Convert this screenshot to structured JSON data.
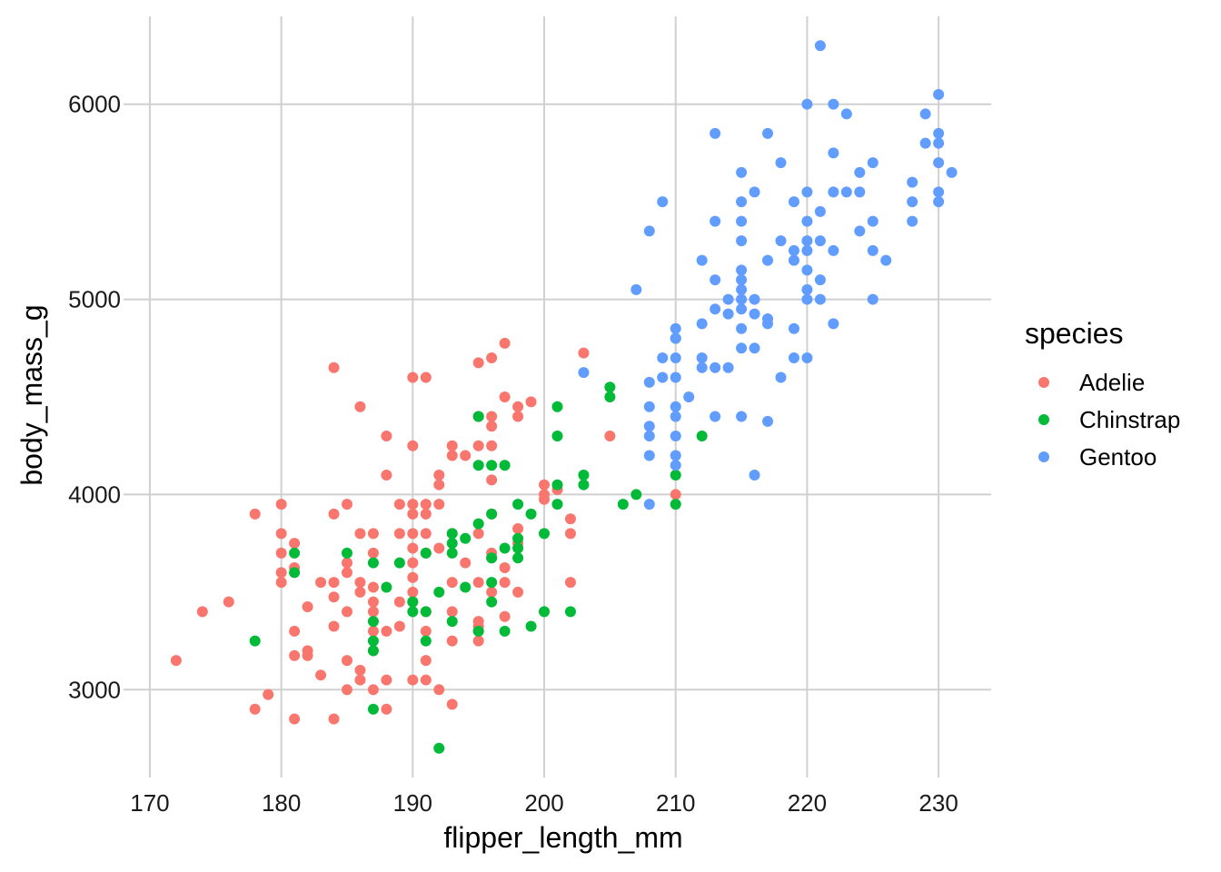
{
  "chart_data": {
    "type": "scatter",
    "xlabel": "flipper_length_mm",
    "ylabel": "body_mass_g",
    "xlim": [
      168,
      234
    ],
    "ylim": [
      2550,
      6450
    ],
    "x_ticks": [
      170,
      180,
      190,
      200,
      210,
      220,
      230
    ],
    "y_ticks": [
      3000,
      4000,
      5000,
      6000
    ],
    "grid": true,
    "legend": {
      "title": "species",
      "position": "right"
    },
    "series": [
      {
        "name": "Adelie",
        "color": "#F8766D",
        "points": [
          [
            172,
            3150
          ],
          [
            174,
            3400
          ],
          [
            176,
            3450
          ],
          [
            178,
            2900
          ],
          [
            178,
            3900
          ],
          [
            179,
            2975
          ],
          [
            180,
            3950
          ],
          [
            180,
            3800
          ],
          [
            180,
            3700
          ],
          [
            180,
            3600
          ],
          [
            180,
            3550
          ],
          [
            181,
            3750
          ],
          [
            181,
            3625
          ],
          [
            181,
            3300
          ],
          [
            181,
            3175
          ],
          [
            181,
            2850
          ],
          [
            182,
            3425
          ],
          [
            182,
            3200
          ],
          [
            182,
            3175
          ],
          [
            183,
            3550
          ],
          [
            183,
            3075
          ],
          [
            184,
            4650
          ],
          [
            184,
            3900
          ],
          [
            184,
            3550
          ],
          [
            184,
            3475
          ],
          [
            184,
            3325
          ],
          [
            184,
            2850
          ],
          [
            185,
            3950
          ],
          [
            185,
            3650
          ],
          [
            185,
            3600
          ],
          [
            185,
            3400
          ],
          [
            185,
            3150
          ],
          [
            185,
            3000
          ],
          [
            186,
            4450
          ],
          [
            186,
            3800
          ],
          [
            186,
            3550
          ],
          [
            186,
            3500
          ],
          [
            186,
            3100
          ],
          [
            186,
            3050
          ],
          [
            187,
            3800
          ],
          [
            187,
            3700
          ],
          [
            187,
            3525
          ],
          [
            187,
            3450
          ],
          [
            187,
            3400
          ],
          [
            187,
            3300
          ],
          [
            187,
            3200
          ],
          [
            187,
            3000
          ],
          [
            188,
            4300
          ],
          [
            188,
            4100
          ],
          [
            188,
            3300
          ],
          [
            188,
            3050
          ],
          [
            188,
            2900
          ],
          [
            189,
            3950
          ],
          [
            189,
            3800
          ],
          [
            189,
            3450
          ],
          [
            189,
            3325
          ],
          [
            190,
            4600
          ],
          [
            190,
            4250
          ],
          [
            190,
            3950
          ],
          [
            190,
            3900
          ],
          [
            190,
            3800
          ],
          [
            190,
            3725
          ],
          [
            190,
            3650
          ],
          [
            190,
            3575
          ],
          [
            190,
            3500
          ],
          [
            190,
            3450
          ],
          [
            190,
            3050
          ],
          [
            191,
            4600
          ],
          [
            191,
            3950
          ],
          [
            191,
            3900
          ],
          [
            191,
            3800
          ],
          [
            191,
            3700
          ],
          [
            191,
            3400
          ],
          [
            191,
            3300
          ],
          [
            191,
            3150
          ],
          [
            191,
            3050
          ],
          [
            192,
            4100
          ],
          [
            192,
            4050
          ],
          [
            192,
            3950
          ],
          [
            192,
            3725
          ],
          [
            192,
            3000
          ],
          [
            193,
            4250
          ],
          [
            193,
            4200
          ],
          [
            193,
            3800
          ],
          [
            193,
            3550
          ],
          [
            193,
            3400
          ],
          [
            193,
            3250
          ],
          [
            193,
            2925
          ],
          [
            194,
            4200
          ],
          [
            194,
            3650
          ],
          [
            195,
            4675
          ],
          [
            195,
            4400
          ],
          [
            195,
            4250
          ],
          [
            195,
            3800
          ],
          [
            195,
            3550
          ],
          [
            195,
            3350
          ],
          [
            195,
            3325
          ],
          [
            195,
            3300
          ],
          [
            195,
            3250
          ],
          [
            196,
            4700
          ],
          [
            196,
            4400
          ],
          [
            196,
            4350
          ],
          [
            196,
            4250
          ],
          [
            196,
            4075
          ],
          [
            196,
            3900
          ],
          [
            196,
            3700
          ],
          [
            196,
            3675
          ],
          [
            196,
            3500
          ],
          [
            197,
            4775
          ],
          [
            197,
            4500
          ],
          [
            197,
            3625
          ],
          [
            197,
            3550
          ],
          [
            197,
            3375
          ],
          [
            198,
            4450
          ],
          [
            198,
            4400
          ],
          [
            198,
            3825
          ],
          [
            198,
            3750
          ],
          [
            198,
            3500
          ],
          [
            199,
            4475
          ],
          [
            200,
            4050
          ],
          [
            200,
            4000
          ],
          [
            200,
            3975
          ],
          [
            201,
            4025
          ],
          [
            202,
            3875
          ],
          [
            202,
            3800
          ],
          [
            202,
            3550
          ],
          [
            203,
            4725
          ],
          [
            205,
            4300
          ],
          [
            210,
            4000
          ]
        ]
      },
      {
        "name": "Chinstrap",
        "color": "#00BA38",
        "points": [
          [
            178,
            3250
          ],
          [
            181,
            3700
          ],
          [
            181,
            3600
          ],
          [
            185,
            3700
          ],
          [
            187,
            3650
          ],
          [
            187,
            3350
          ],
          [
            187,
            3250
          ],
          [
            187,
            3200
          ],
          [
            187,
            2900
          ],
          [
            188,
            3525
          ],
          [
            189,
            3650
          ],
          [
            190,
            3450
          ],
          [
            190,
            3400
          ],
          [
            191,
            3700
          ],
          [
            191,
            3400
          ],
          [
            191,
            3250
          ],
          [
            192,
            3500
          ],
          [
            192,
            2700
          ],
          [
            193,
            3800
          ],
          [
            193,
            3750
          ],
          [
            193,
            3700
          ],
          [
            193,
            3350
          ],
          [
            194,
            3775
          ],
          [
            194,
            3525
          ],
          [
            195,
            4400
          ],
          [
            195,
            4150
          ],
          [
            195,
            3850
          ],
          [
            195,
            3300
          ],
          [
            196,
            4150
          ],
          [
            196,
            3900
          ],
          [
            196,
            3675
          ],
          [
            196,
            3550
          ],
          [
            196,
            3450
          ],
          [
            197,
            4150
          ],
          [
            197,
            3725
          ],
          [
            197,
            3300
          ],
          [
            198,
            3950
          ],
          [
            198,
            3775
          ],
          [
            198,
            3725
          ],
          [
            198,
            3675
          ],
          [
            199,
            3900
          ],
          [
            199,
            3325
          ],
          [
            200,
            3800
          ],
          [
            200,
            3400
          ],
          [
            201,
            4450
          ],
          [
            201,
            4300
          ],
          [
            201,
            4050
          ],
          [
            201,
            3950
          ],
          [
            202,
            3400
          ],
          [
            203,
            4100
          ],
          [
            203,
            4050
          ],
          [
            205,
            4550
          ],
          [
            205,
            4500
          ],
          [
            206,
            3950
          ],
          [
            207,
            4000
          ],
          [
            210,
            4800
          ],
          [
            210,
            4100
          ],
          [
            210,
            3950
          ],
          [
            212,
            4300
          ]
        ]
      },
      {
        "name": "Gentoo",
        "color": "#619CFF",
        "points": [
          [
            203,
            4625
          ],
          [
            207,
            5050
          ],
          [
            208,
            5350
          ],
          [
            208,
            4575
          ],
          [
            208,
            4450
          ],
          [
            208,
            4350
          ],
          [
            208,
            4300
          ],
          [
            208,
            4200
          ],
          [
            208,
            3950
          ],
          [
            209,
            5500
          ],
          [
            209,
            4700
          ],
          [
            209,
            4600
          ],
          [
            210,
            4850
          ],
          [
            210,
            4800
          ],
          [
            210,
            4700
          ],
          [
            210,
            4600
          ],
          [
            210,
            4450
          ],
          [
            210,
            4400
          ],
          [
            210,
            4300
          ],
          [
            210,
            4200
          ],
          [
            210,
            4150
          ],
          [
            211,
            4500
          ],
          [
            212,
            5200
          ],
          [
            212,
            4875
          ],
          [
            212,
            4700
          ],
          [
            212,
            4650
          ],
          [
            213,
            5850
          ],
          [
            213,
            5400
          ],
          [
            213,
            5100
          ],
          [
            213,
            4950
          ],
          [
            213,
            4650
          ],
          [
            213,
            4400
          ],
          [
            214,
            5000
          ],
          [
            214,
            4925
          ],
          [
            214,
            4650
          ],
          [
            215,
            5650
          ],
          [
            215,
            5500
          ],
          [
            215,
            5400
          ],
          [
            215,
            5300
          ],
          [
            215,
            5150
          ],
          [
            215,
            5100
          ],
          [
            215,
            5050
          ],
          [
            215,
            5000
          ],
          [
            215,
            4950
          ],
          [
            215,
            4850
          ],
          [
            215,
            4750
          ],
          [
            215,
            4400
          ],
          [
            216,
            5550
          ],
          [
            216,
            5000
          ],
          [
            216,
            4925
          ],
          [
            216,
            4750
          ],
          [
            216,
            4100
          ],
          [
            217,
            5850
          ],
          [
            217,
            5200
          ],
          [
            217,
            4900
          ],
          [
            217,
            4875
          ],
          [
            217,
            4375
          ],
          [
            218,
            5700
          ],
          [
            218,
            5300
          ],
          [
            218,
            4600
          ],
          [
            219,
            5500
          ],
          [
            219,
            5250
          ],
          [
            219,
            5200
          ],
          [
            219,
            4850
          ],
          [
            219,
            4700
          ],
          [
            220,
            6000
          ],
          [
            220,
            5550
          ],
          [
            220,
            5400
          ],
          [
            220,
            5300
          ],
          [
            220,
            5250
          ],
          [
            220,
            5150
          ],
          [
            220,
            5050
          ],
          [
            220,
            5000
          ],
          [
            220,
            4700
          ],
          [
            221,
            6300
          ],
          [
            221,
            5450
          ],
          [
            221,
            5300
          ],
          [
            221,
            5100
          ],
          [
            221,
            5000
          ],
          [
            222,
            6000
          ],
          [
            222,
            5750
          ],
          [
            222,
            5550
          ],
          [
            222,
            5250
          ],
          [
            222,
            4875
          ],
          [
            223,
            5950
          ],
          [
            223,
            5550
          ],
          [
            224,
            5650
          ],
          [
            224,
            5550
          ],
          [
            224,
            5350
          ],
          [
            225,
            5700
          ],
          [
            225,
            5400
          ],
          [
            225,
            5250
          ],
          [
            225,
            5000
          ],
          [
            226,
            5200
          ],
          [
            228,
            5600
          ],
          [
            228,
            5500
          ],
          [
            228,
            5400
          ],
          [
            229,
            5950
          ],
          [
            229,
            5800
          ],
          [
            230,
            6050
          ],
          [
            230,
            5850
          ],
          [
            230,
            5800
          ],
          [
            230,
            5700
          ],
          [
            230,
            5550
          ],
          [
            230,
            5500
          ],
          [
            231,
            5650
          ]
        ]
      }
    ]
  }
}
